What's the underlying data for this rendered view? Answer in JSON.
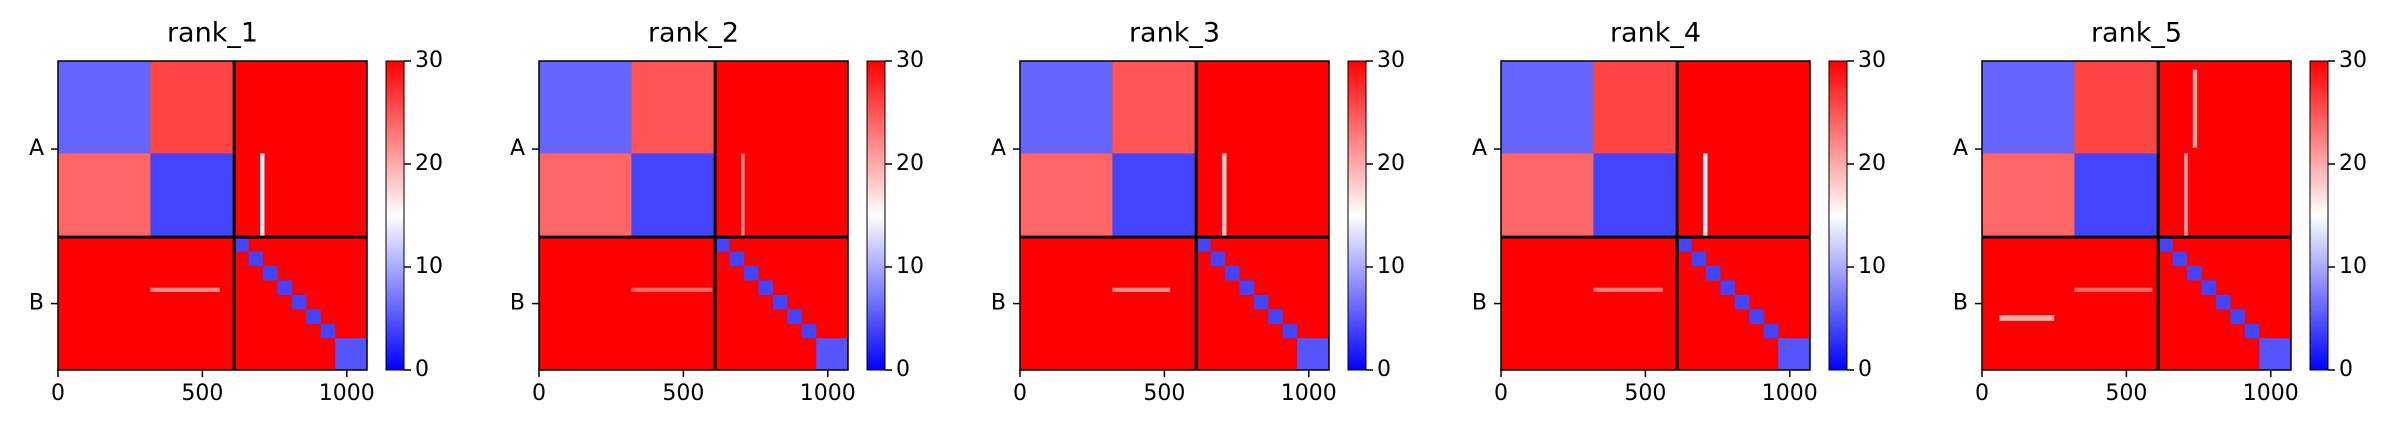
{
  "chart_data": [
    {
      "type": "heatmap",
      "title": "rank_1",
      "xlim": [
        0,
        1070
      ],
      "ylim": [
        1070,
        0
      ],
      "xticks": [
        0,
        500,
        1000
      ],
      "yticks": [
        {
          "value": 305,
          "label": "A"
        },
        {
          "value": 840,
          "label": "B"
        }
      ],
      "chain_breaks": [
        610
      ],
      "colormap": [
        "#0000ff",
        "#ffffff",
        "#ff0000"
      ],
      "clim": [
        0,
        30
      ],
      "cticks": [
        0,
        10,
        20,
        30
      ],
      "cells": [
        {
          "x": [
            0,
            1070
          ],
          "y": [
            0,
            1070
          ],
          "value": 30
        },
        {
          "x": [
            0,
            320
          ],
          "y": [
            0,
            320
          ],
          "value": 6
        },
        {
          "x": [
            320,
            610
          ],
          "y": [
            320,
            610
          ],
          "value": 4
        },
        {
          "x": [
            320,
            610
          ],
          "y": [
            0,
            320
          ],
          "value": 26
        },
        {
          "x": [
            0,
            320
          ],
          "y": [
            320,
            610
          ],
          "value": 24
        },
        {
          "x": [
            700,
            715
          ],
          "y": [
            320,
            610
          ],
          "value": 14
        },
        {
          "x": [
            320,
            560
          ],
          "y": [
            785,
            800
          ],
          "value": 22
        },
        {
          "x": [
            960,
            1070
          ],
          "y": [
            960,
            1070
          ],
          "value": 5
        },
        {
          "x": [
            610,
            660
          ],
          "y": [
            610,
            660
          ],
          "value": 4
        },
        {
          "x": [
            660,
            710
          ],
          "y": [
            660,
            710
          ],
          "value": 4
        },
        {
          "x": [
            710,
            760
          ],
          "y": [
            710,
            760
          ],
          "value": 4
        },
        {
          "x": [
            760,
            810
          ],
          "y": [
            760,
            810
          ],
          "value": 4
        },
        {
          "x": [
            810,
            860
          ],
          "y": [
            810,
            860
          ],
          "value": 4
        },
        {
          "x": [
            860,
            910
          ],
          "y": [
            860,
            910
          ],
          "value": 4
        },
        {
          "x": [
            910,
            960
          ],
          "y": [
            910,
            960
          ],
          "value": 4
        }
      ]
    },
    {
      "type": "heatmap",
      "title": "rank_2",
      "xlim": [
        0,
        1070
      ],
      "ylim": [
        1070,
        0
      ],
      "xticks": [
        0,
        500,
        1000
      ],
      "yticks": [
        {
          "value": 305,
          "label": "A"
        },
        {
          "value": 840,
          "label": "B"
        }
      ],
      "chain_breaks": [
        610
      ],
      "colormap": [
        "#0000ff",
        "#ffffff",
        "#ff0000"
      ],
      "clim": [
        0,
        30
      ],
      "cticks": [
        0,
        10,
        20,
        30
      ],
      "cells": [
        {
          "x": [
            0,
            1070
          ],
          "y": [
            0,
            1070
          ],
          "value": 30
        },
        {
          "x": [
            0,
            320
          ],
          "y": [
            0,
            320
          ],
          "value": 6
        },
        {
          "x": [
            320,
            610
          ],
          "y": [
            320,
            610
          ],
          "value": 4
        },
        {
          "x": [
            320,
            610
          ],
          "y": [
            0,
            320
          ],
          "value": 25
        },
        {
          "x": [
            0,
            320
          ],
          "y": [
            320,
            610
          ],
          "value": 24
        },
        {
          "x": [
            700,
            712
          ],
          "y": [
            320,
            610
          ],
          "value": 22
        },
        {
          "x": [
            320,
            600
          ],
          "y": [
            785,
            800
          ],
          "value": 24
        },
        {
          "x": [
            960,
            1070
          ],
          "y": [
            960,
            1070
          ],
          "value": 5
        },
        {
          "x": [
            610,
            660
          ],
          "y": [
            610,
            660
          ],
          "value": 4
        },
        {
          "x": [
            660,
            710
          ],
          "y": [
            660,
            710
          ],
          "value": 4
        },
        {
          "x": [
            710,
            760
          ],
          "y": [
            710,
            760
          ],
          "value": 4
        },
        {
          "x": [
            760,
            810
          ],
          "y": [
            760,
            810
          ],
          "value": 4
        },
        {
          "x": [
            810,
            860
          ],
          "y": [
            810,
            860
          ],
          "value": 4
        },
        {
          "x": [
            860,
            910
          ],
          "y": [
            860,
            910
          ],
          "value": 4
        },
        {
          "x": [
            910,
            960
          ],
          "y": [
            910,
            960
          ],
          "value": 4
        }
      ]
    },
    {
      "type": "heatmap",
      "title": "rank_3",
      "xlim": [
        0,
        1070
      ],
      "ylim": [
        1070,
        0
      ],
      "xticks": [
        0,
        500,
        1000
      ],
      "yticks": [
        {
          "value": 305,
          "label": "A"
        },
        {
          "value": 840,
          "label": "B"
        }
      ],
      "chain_breaks": [
        610
      ],
      "colormap": [
        "#0000ff",
        "#ffffff",
        "#ff0000"
      ],
      "clim": [
        0,
        30
      ],
      "cticks": [
        0,
        10,
        20,
        30
      ],
      "cells": [
        {
          "x": [
            0,
            1070
          ],
          "y": [
            0,
            1070
          ],
          "value": 30
        },
        {
          "x": [
            0,
            320
          ],
          "y": [
            0,
            320
          ],
          "value": 6
        },
        {
          "x": [
            320,
            610
          ],
          "y": [
            320,
            610
          ],
          "value": 4
        },
        {
          "x": [
            320,
            610
          ],
          "y": [
            0,
            320
          ],
          "value": 25
        },
        {
          "x": [
            0,
            320
          ],
          "y": [
            320,
            610
          ],
          "value": 24
        },
        {
          "x": [
            700,
            715
          ],
          "y": [
            320,
            610
          ],
          "value": 18
        },
        {
          "x": [
            320,
            520
          ],
          "y": [
            785,
            800
          ],
          "value": 22
        },
        {
          "x": [
            960,
            1070
          ],
          "y": [
            960,
            1070
          ],
          "value": 5
        },
        {
          "x": [
            610,
            660
          ],
          "y": [
            610,
            660
          ],
          "value": 4
        },
        {
          "x": [
            660,
            710
          ],
          "y": [
            660,
            710
          ],
          "value": 4
        },
        {
          "x": [
            710,
            760
          ],
          "y": [
            710,
            760
          ],
          "value": 4
        },
        {
          "x": [
            760,
            810
          ],
          "y": [
            760,
            810
          ],
          "value": 4
        },
        {
          "x": [
            810,
            860
          ],
          "y": [
            810,
            860
          ],
          "value": 4
        },
        {
          "x": [
            860,
            910
          ],
          "y": [
            860,
            910
          ],
          "value": 4
        },
        {
          "x": [
            910,
            960
          ],
          "y": [
            910,
            960
          ],
          "value": 4
        }
      ]
    },
    {
      "type": "heatmap",
      "title": "rank_4",
      "xlim": [
        0,
        1070
      ],
      "ylim": [
        1070,
        0
      ],
      "xticks": [
        0,
        500,
        1000
      ],
      "yticks": [
        {
          "value": 305,
          "label": "A"
        },
        {
          "value": 840,
          "label": "B"
        }
      ],
      "chain_breaks": [
        610
      ],
      "colormap": [
        "#0000ff",
        "#ffffff",
        "#ff0000"
      ],
      "clim": [
        0,
        30
      ],
      "cticks": [
        0,
        10,
        20,
        30
      ],
      "cells": [
        {
          "x": [
            0,
            1070
          ],
          "y": [
            0,
            1070
          ],
          "value": 30
        },
        {
          "x": [
            0,
            320
          ],
          "y": [
            0,
            320
          ],
          "value": 6
        },
        {
          "x": [
            320,
            610
          ],
          "y": [
            320,
            610
          ],
          "value": 4
        },
        {
          "x": [
            320,
            610
          ],
          "y": [
            0,
            320
          ],
          "value": 26
        },
        {
          "x": [
            0,
            320
          ],
          "y": [
            320,
            610
          ],
          "value": 24
        },
        {
          "x": [
            700,
            715
          ],
          "y": [
            320,
            610
          ],
          "value": 14
        },
        {
          "x": [
            320,
            560
          ],
          "y": [
            785,
            800
          ],
          "value": 23
        },
        {
          "x": [
            960,
            1070
          ],
          "y": [
            960,
            1070
          ],
          "value": 5
        },
        {
          "x": [
            610,
            660
          ],
          "y": [
            610,
            660
          ],
          "value": 4
        },
        {
          "x": [
            660,
            710
          ],
          "y": [
            660,
            710
          ],
          "value": 4
        },
        {
          "x": [
            710,
            760
          ],
          "y": [
            710,
            760
          ],
          "value": 4
        },
        {
          "x": [
            760,
            810
          ],
          "y": [
            760,
            810
          ],
          "value": 4
        },
        {
          "x": [
            810,
            860
          ],
          "y": [
            810,
            860
          ],
          "value": 4
        },
        {
          "x": [
            860,
            910
          ],
          "y": [
            860,
            910
          ],
          "value": 4
        },
        {
          "x": [
            910,
            960
          ],
          "y": [
            910,
            960
          ],
          "value": 4
        }
      ]
    },
    {
      "type": "heatmap",
      "title": "rank_5",
      "xlim": [
        0,
        1070
      ],
      "ylim": [
        1070,
        0
      ],
      "xticks": [
        0,
        500,
        1000
      ],
      "yticks": [
        {
          "value": 305,
          "label": "A"
        },
        {
          "value": 840,
          "label": "B"
        }
      ],
      "chain_breaks": [
        610
      ],
      "colormap": [
        "#0000ff",
        "#ffffff",
        "#ff0000"
      ],
      "clim": [
        0,
        30
      ],
      "cticks": [
        0,
        10,
        20,
        30
      ],
      "cells": [
        {
          "x": [
            0,
            1070
          ],
          "y": [
            0,
            1070
          ],
          "value": 30
        },
        {
          "x": [
            0,
            320
          ],
          "y": [
            0,
            320
          ],
          "value": 6
        },
        {
          "x": [
            320,
            610
          ],
          "y": [
            320,
            610
          ],
          "value": 4
        },
        {
          "x": [
            320,
            610
          ],
          "y": [
            0,
            320
          ],
          "value": 26
        },
        {
          "x": [
            0,
            320
          ],
          "y": [
            320,
            610
          ],
          "value": 24
        },
        {
          "x": [
            730,
            745
          ],
          "y": [
            30,
            300
          ],
          "value": 20
        },
        {
          "x": [
            700,
            712
          ],
          "y": [
            320,
            610
          ],
          "value": 20
        },
        {
          "x": [
            60,
            250
          ],
          "y": [
            880,
            900
          ],
          "value": 20
        },
        {
          "x": [
            320,
            590
          ],
          "y": [
            785,
            800
          ],
          "value": 24
        },
        {
          "x": [
            960,
            1070
          ],
          "y": [
            960,
            1070
          ],
          "value": 5
        },
        {
          "x": [
            610,
            660
          ],
          "y": [
            610,
            660
          ],
          "value": 4
        },
        {
          "x": [
            660,
            710
          ],
          "y": [
            660,
            710
          ],
          "value": 4
        },
        {
          "x": [
            710,
            760
          ],
          "y": [
            710,
            760
          ],
          "value": 4
        },
        {
          "x": [
            760,
            810
          ],
          "y": [
            760,
            810
          ],
          "value": 4
        },
        {
          "x": [
            810,
            860
          ],
          "y": [
            810,
            860
          ],
          "value": 4
        },
        {
          "x": [
            860,
            910
          ],
          "y": [
            860,
            910
          ],
          "value": 4
        },
        {
          "x": [
            910,
            960
          ],
          "y": [
            910,
            960
          ],
          "value": 4
        }
      ]
    }
  ]
}
